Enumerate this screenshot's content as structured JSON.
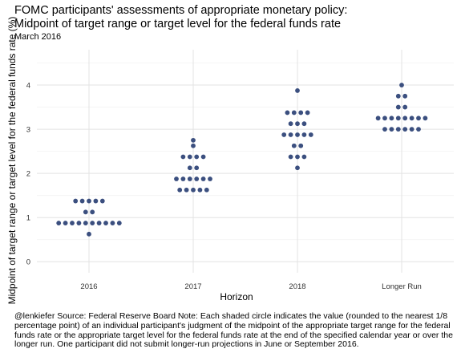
{
  "chart_data": {
    "type": "scatter",
    "title_line1": "FOMC participants' assessments of appropriate monetary policy:",
    "title_line2": "Midpoint of target range or target level for the federal funds rate",
    "subtitle": "March 2016",
    "xlabel": "Horizon",
    "ylabel": "Midpoint of target range or target level for the federal funds rate (%)",
    "caption": "@lenkiefer Source: Federal Reserve Board Note: Each shaded circle indicates the value (rounded to the nearest 1/8 percentage point) of an individual participant's judgment of the midpoint of the appropriate target range for the federal funds rate or the appropriate target level for the federal funds rate at the end of the specified calendar year or over the longer run. One participant did not submit longer-run projections in June or September 2016.",
    "categories": [
      "2016",
      "2017",
      "2018",
      "Longer Run"
    ],
    "ylim": [
      -0.25,
      4.8
    ],
    "yticks": [
      0,
      1,
      2,
      3,
      4
    ],
    "grid": true,
    "dot_color": "#3b4f7f",
    "series": [
      {
        "category": "2016",
        "values": [
          0.625,
          0.875,
          0.875,
          0.875,
          0.875,
          0.875,
          0.875,
          0.875,
          0.875,
          0.875,
          0.875,
          1.125,
          1.125,
          1.375,
          1.375,
          1.375,
          1.375,
          1.375
        ]
      },
      {
        "category": "2017",
        "values": [
          1.625,
          1.625,
          1.625,
          1.625,
          1.625,
          1.875,
          1.875,
          1.875,
          1.875,
          1.875,
          1.875,
          2.125,
          2.125,
          2.375,
          2.375,
          2.375,
          2.375,
          2.625,
          2.75
        ]
      },
      {
        "category": "2018",
        "values": [
          2.125,
          2.375,
          2.375,
          2.375,
          2.625,
          2.625,
          2.875,
          2.875,
          2.875,
          2.875,
          2.875,
          3.125,
          3.125,
          3.125,
          3.375,
          3.375,
          3.375,
          3.375,
          3.875
        ]
      },
      {
        "category": "Longer Run",
        "values": [
          3.0,
          3.0,
          3.0,
          3.0,
          3.0,
          3.0,
          3.25,
          3.25,
          3.25,
          3.25,
          3.25,
          3.25,
          3.25,
          3.25,
          3.5,
          3.5,
          3.75,
          3.75,
          4.0
        ]
      }
    ]
  }
}
